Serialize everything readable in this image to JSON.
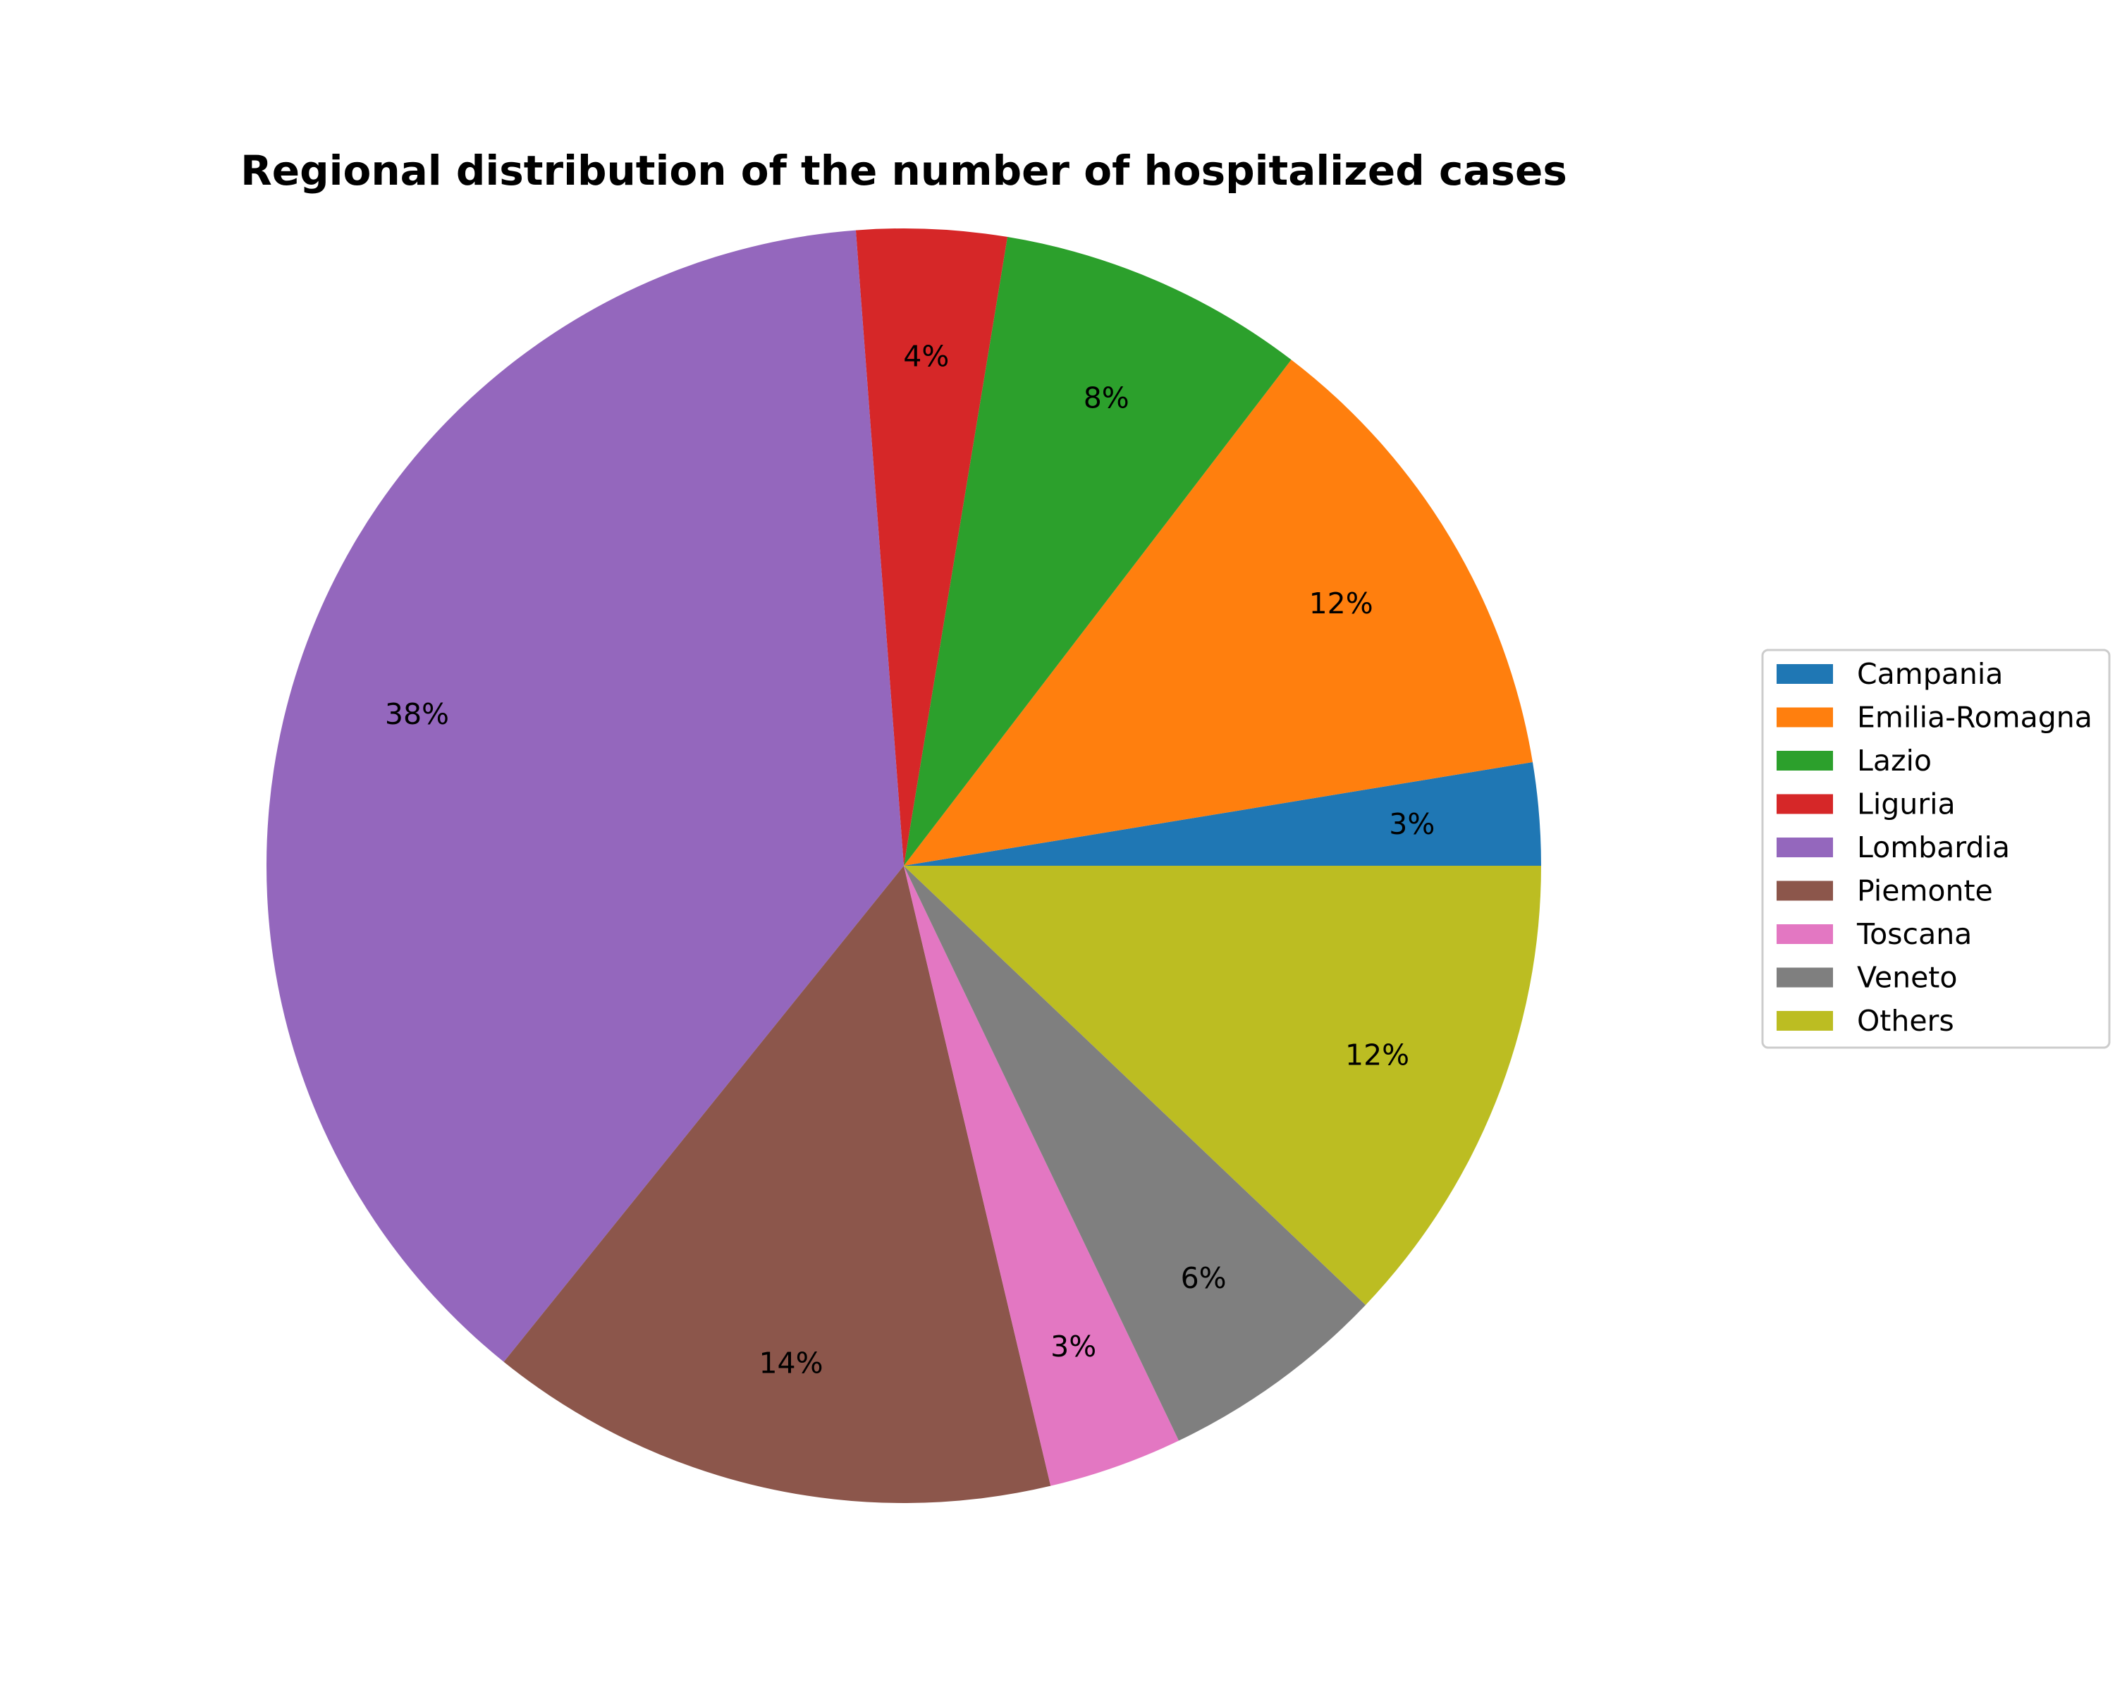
{
  "chart_data": {
    "type": "pie",
    "title": "Regional distribution of the number of hospitalized cases",
    "categories": [
      "Campania",
      "Emilia-Romagna",
      "Lazio",
      "Liguria",
      "Lombardia",
      "Piemonte",
      "Toscana",
      "Veneto",
      "Others"
    ],
    "values": [
      2.6,
      12.0,
      7.8,
      3.8,
      38.0,
      14.5,
      3.4,
      5.8,
      12.1
    ],
    "labels": [
      "3%",
      "12%",
      "8%",
      "4%",
      "38%",
      "14%",
      "3%",
      "6%",
      "12%"
    ],
    "colors": [
      "#1f77b4",
      "#ff7f0e",
      "#2ca02c",
      "#d62728",
      "#9467bd",
      "#8c564b",
      "#e377c2",
      "#7f7f7f",
      "#bcbd22"
    ],
    "start_angle_deg": 0,
    "direction": "counterclockwise",
    "legend_position": "right"
  }
}
